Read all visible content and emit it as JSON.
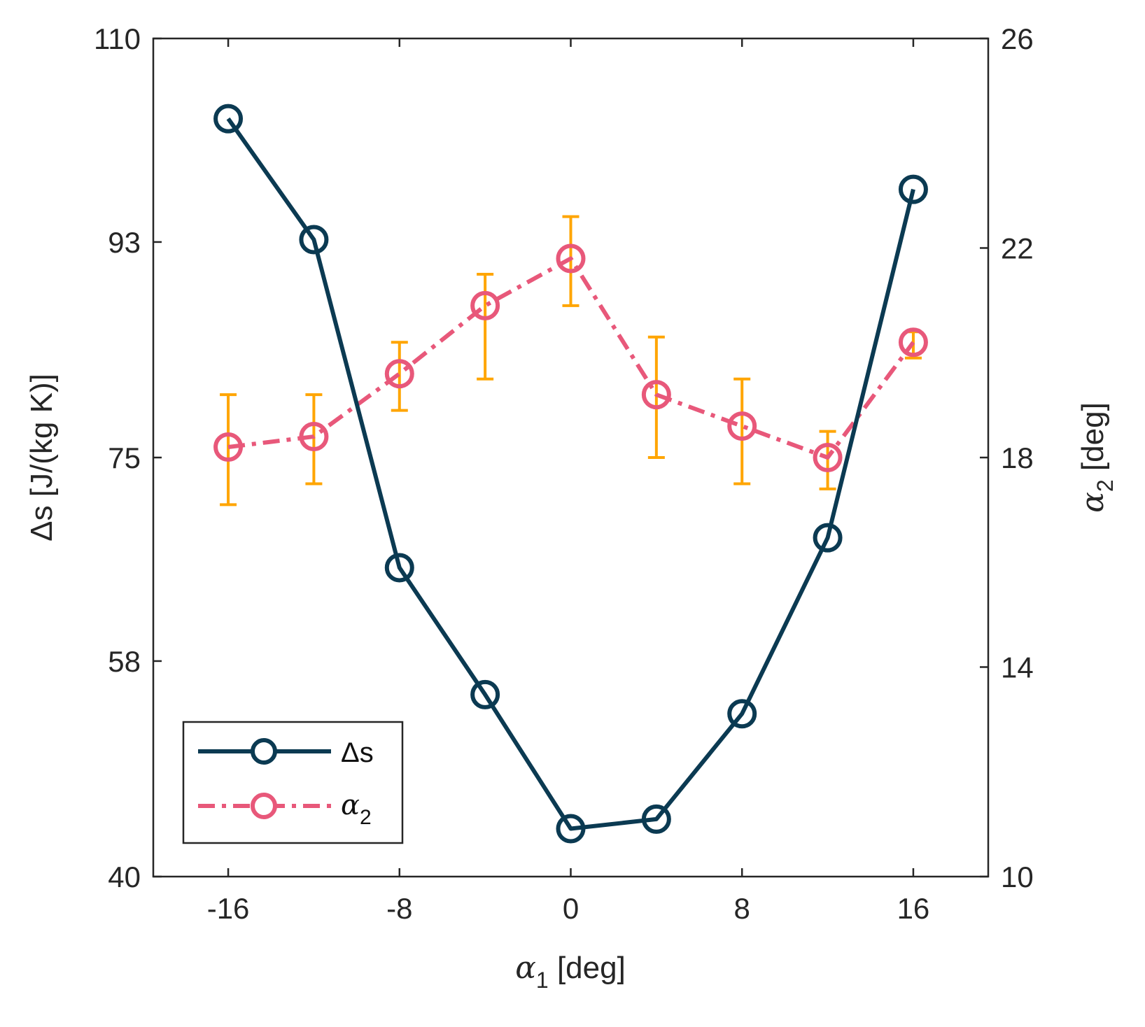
{
  "chart_data": {
    "type": "line",
    "title": "",
    "xlabel": {
      "symbol": "α",
      "subscript": "1",
      "unit": "[deg]"
    },
    "ylabel": "Δs [J/(kg K)]",
    "ylabel_right": {
      "symbol": "α",
      "subscript": "2",
      "unit": "[deg]"
    },
    "xlim": [
      -19.5,
      19.5
    ],
    "ylim": [
      40,
      110
    ],
    "ylim_right": [
      10,
      26
    ],
    "xticks": [
      -16,
      -8,
      0,
      8,
      16
    ],
    "xtick_labels": [
      "-16",
      "-8",
      "0",
      "8",
      "16"
    ],
    "yticks": [
      40,
      58,
      75,
      93,
      110
    ],
    "ytick_labels": [
      "40",
      "58",
      "75",
      "93",
      "110"
    ],
    "yticks_right": [
      10,
      14,
      18,
      22,
      26
    ],
    "ytick_labels_right": [
      "10",
      "14",
      "18",
      "22",
      "26"
    ],
    "grid": false,
    "legend_position": "bottom-left",
    "x": [
      -16,
      -12,
      -8,
      -4,
      0,
      4,
      8,
      12,
      16
    ],
    "series": [
      {
        "name": "Δs",
        "axis": "left",
        "color": "#0b3a52",
        "line_style": "solid",
        "marker": "circle",
        "values": [
          103.3,
          93.2,
          65.8,
          55.2,
          44.0,
          44.8,
          53.6,
          68.3,
          97.4
        ]
      },
      {
        "name": "α",
        "name_subscript": "2",
        "axis": "right",
        "color": "#e8587a",
        "line_style": "dash-dot",
        "marker": "circle",
        "values": [
          18.2,
          18.4,
          19.6,
          20.9,
          21.8,
          19.2,
          18.6,
          18.0,
          20.2
        ],
        "error_low": [
          17.1,
          17.5,
          18.9,
          19.5,
          20.9,
          18.0,
          17.5,
          17.4,
          19.9
        ],
        "error_high": [
          19.2,
          19.2,
          20.2,
          21.5,
          22.6,
          20.3,
          19.5,
          18.5,
          20.4
        ],
        "error_color": "#ffa500"
      }
    ]
  }
}
